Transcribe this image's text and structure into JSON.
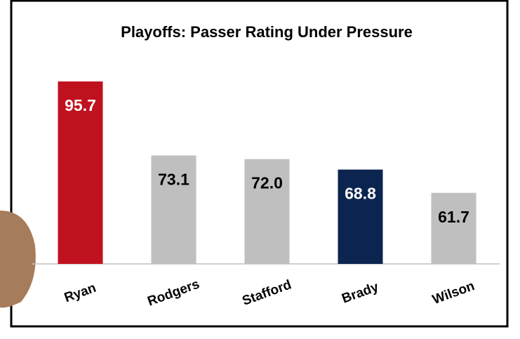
{
  "chart_data": {
    "type": "bar",
    "title": "Playoffs: Passer Rating Under Pressure",
    "categories": [
      "Ryan",
      "Rodgers",
      "Stafford",
      "Brady",
      "Wilson"
    ],
    "values": [
      95.7,
      73.1,
      72.0,
      68.8,
      61.7
    ],
    "value_labels": [
      "95.7",
      "73.1",
      "72.0",
      "68.8",
      "61.7"
    ],
    "colors": [
      "#c0111f",
      "#bfbfbf",
      "#bfbfbf",
      "#0c2550",
      "#bfbfbf"
    ],
    "ylim": [
      40,
      100
    ]
  }
}
